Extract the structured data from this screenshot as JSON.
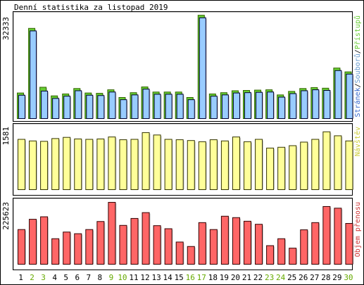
{
  "title": "Denní statistika za listopad 2019",
  "colors": {
    "hits": "#66cc33",
    "files": "#3366cc",
    "files_fill": "#99ccff",
    "visits": "#cccc33",
    "visits_fill": "#ffff99",
    "kbytes": "#cc3333",
    "kbytes_fill": "#ff6666",
    "weekend_label": "#66aa00"
  },
  "legend": {
    "top": {
      "hits": "Přístupů",
      "sep1": "/",
      "files": "Souborů",
      "sep2": "/",
      "pages": "Stránek"
    },
    "middle": "Návštěv",
    "bottom": "Objem přenosu"
  },
  "axis_max": {
    "top": "32333",
    "middle": "1581",
    "bottom": "225623"
  },
  "chart_data": [
    {
      "type": "bar",
      "panel": "top",
      "categories": [
        "1",
        "2",
        "3",
        "4",
        "5",
        "6",
        "7",
        "8",
        "9",
        "10",
        "11",
        "12",
        "13",
        "14",
        "15",
        "16",
        "17",
        "18",
        "19",
        "20",
        "21",
        "22",
        "23",
        "24",
        "25",
        "26",
        "27",
        "28",
        "29",
        "30"
      ],
      "weekend_days": [
        "2",
        "3",
        "9",
        "10",
        "16",
        "17",
        "23",
        "24",
        "30"
      ],
      "ylim": [
        0,
        32333
      ],
      "series": [
        {
          "name": "Přístupů",
          "values": [
            8000,
            28200,
            9800,
            7100,
            7700,
            9400,
            8000,
            7900,
            9000,
            6600,
            8100,
            9900,
            8300,
            8300,
            8300,
            6600,
            32300,
            7700,
            8100,
            8700,
            8800,
            8900,
            9000,
            7400,
            8500,
            9400,
            9700,
            9500,
            15800,
            14600
          ]
        },
        {
          "name": "Souborů",
          "values": [
            7300,
            27400,
            8600,
            6300,
            7000,
            8700,
            7300,
            7200,
            8300,
            5900,
            7400,
            9200,
            7600,
            7600,
            7600,
            5900,
            31500,
            7000,
            7400,
            8000,
            8100,
            8200,
            8300,
            6700,
            7800,
            8700,
            9000,
            8800,
            15000,
            13900
          ]
        },
        {
          "name": "Stránek",
          "values": [
            0,
            0,
            0,
            0,
            0,
            0,
            0,
            0,
            0,
            0,
            0,
            0,
            0,
            0,
            0,
            0,
            0,
            0,
            0,
            0,
            0,
            0,
            0,
            0,
            0,
            0,
            0,
            0,
            0,
            0
          ]
        }
      ]
    },
    {
      "type": "bar",
      "panel": "middle",
      "categories": [
        "1",
        "2",
        "3",
        "4",
        "5",
        "6",
        "7",
        "8",
        "9",
        "10",
        "11",
        "12",
        "13",
        "14",
        "15",
        "16",
        "17",
        "18",
        "19",
        "20",
        "21",
        "22",
        "23",
        "24",
        "25",
        "26",
        "27",
        "28",
        "29",
        "30"
      ],
      "ylim": [
        0,
        1581
      ],
      "series": [
        {
          "name": "Návštěv",
          "values": [
            1270,
            1230,
            1220,
            1290,
            1320,
            1280,
            1270,
            1280,
            1330,
            1260,
            1270,
            1440,
            1380,
            1270,
            1260,
            1240,
            1210,
            1260,
            1230,
            1330,
            1210,
            1270,
            1050,
            1070,
            1110,
            1200,
            1270,
            1460,
            1360,
            1230
          ]
        }
      ]
    },
    {
      "type": "bar",
      "panel": "bottom",
      "categories": [
        "1",
        "2",
        "3",
        "4",
        "5",
        "6",
        "7",
        "8",
        "9",
        "10",
        "11",
        "12",
        "13",
        "14",
        "15",
        "16",
        "17",
        "18",
        "19",
        "20",
        "21",
        "22",
        "23",
        "24",
        "25",
        "26",
        "27",
        "28",
        "29",
        "30"
      ],
      "ylim": [
        0,
        225623
      ],
      "series": [
        {
          "name": "Objem přenosu",
          "values": [
            125000,
            162000,
            171000,
            92000,
            116000,
            110000,
            125000,
            154000,
            223000,
            140000,
            165000,
            186000,
            139000,
            128000,
            80000,
            64000,
            150000,
            125000,
            173000,
            168000,
            155000,
            144000,
            67000,
            92000,
            58000,
            124000,
            150000,
            208000,
            202000,
            147000
          ]
        }
      ]
    }
  ]
}
